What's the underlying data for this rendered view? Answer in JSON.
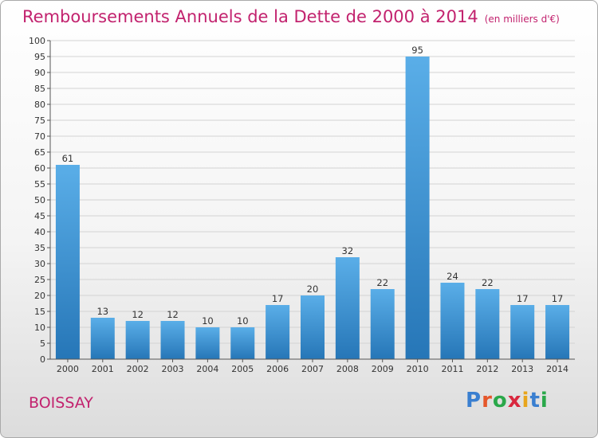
{
  "title": "Remboursements Annuels de la Dette de 2000 à 2014",
  "unit": "(en milliers d'€)",
  "commune": "BOISSAY",
  "logo": {
    "text": "Proxiti",
    "letters": [
      "P",
      "r",
      "o",
      "x",
      "i",
      "t",
      "i"
    ],
    "colors": [
      "#3a7fd0",
      "#e5572b",
      "#2aa84a",
      "#d9283f",
      "#e8a51c",
      "#3a7fd0",
      "#2aa84a"
    ]
  },
  "colors": {
    "title": "#c2226e",
    "bar_top": "#5aaee8",
    "bar_bottom": "#2676b7",
    "grid": "#d3d3d3"
  },
  "chart_data": {
    "type": "bar",
    "title": "Remboursements Annuels de la Dette de 2000 à 2014",
    "categories": [
      "2000",
      "2001",
      "2002",
      "2003",
      "2004",
      "2005",
      "2006",
      "2007",
      "2008",
      "2009",
      "2010",
      "2011",
      "2012",
      "2013",
      "2014"
    ],
    "values": [
      61,
      13,
      12,
      12,
      10,
      10,
      17,
      20,
      32,
      22,
      95,
      24,
      22,
      17,
      17
    ],
    "ylim": [
      0,
      100
    ],
    "yticks": [
      0,
      5,
      10,
      15,
      20,
      25,
      30,
      35,
      40,
      45,
      50,
      55,
      60,
      65,
      70,
      75,
      80,
      85,
      90,
      95,
      100
    ],
    "grid": true,
    "legend": "none"
  }
}
